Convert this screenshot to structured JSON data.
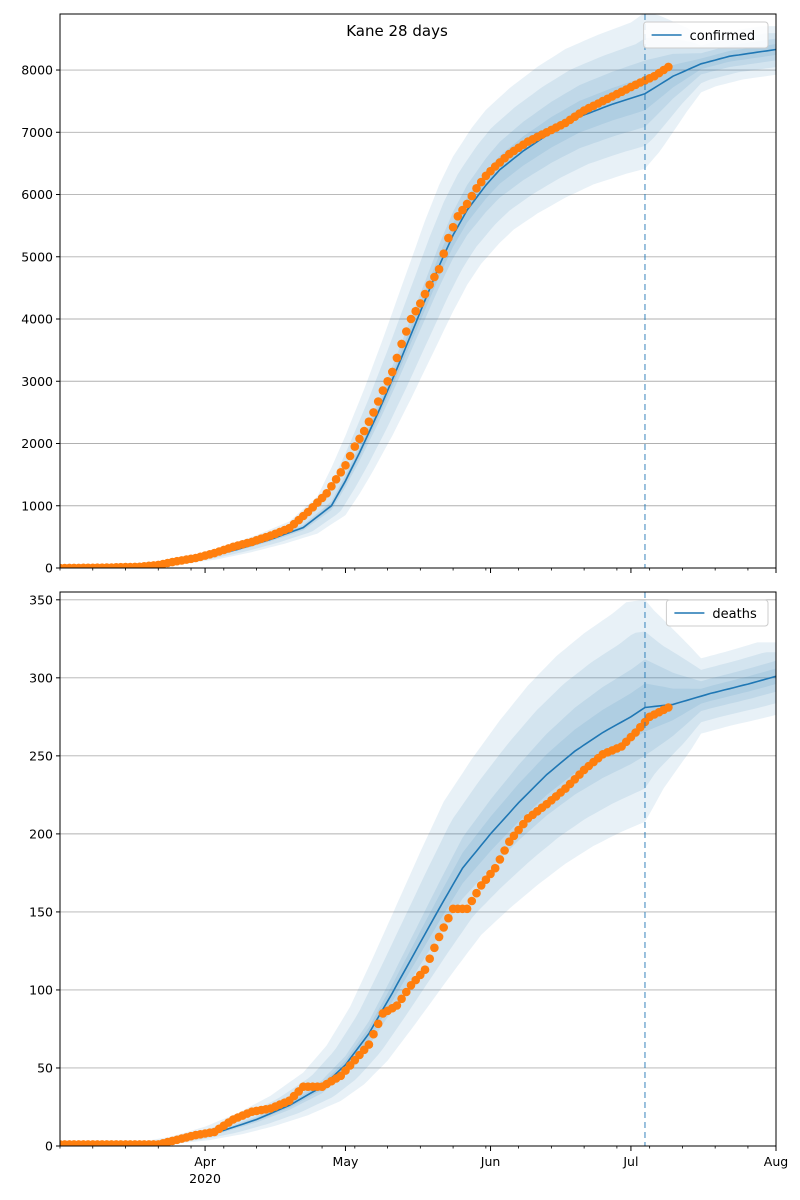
{
  "figure": {
    "title": "Kane 28 days"
  },
  "chart_data": [
    {
      "type": "line",
      "title": "Kane 28 days",
      "legend": {
        "label": "confirmed",
        "placement": "top-right"
      },
      "x_axis": {
        "start": "2020-03-01",
        "end": "2020-08-01",
        "tick_labels": [
          "Apr",
          "May",
          "Jun",
          "Jul",
          "Aug"
        ],
        "tick_dates": [
          "2020-04-01",
          "2020-05-01",
          "2020-06-01",
          "2020-07-01",
          "2020-08-01"
        ],
        "year_label": "2020"
      },
      "ylim": [
        0,
        8900
      ],
      "y_ticks": [
        0,
        1000,
        2000,
        3000,
        4000,
        5000,
        6000,
        7000,
        8000
      ],
      "grid": "horizontal",
      "forecast_start": "2020-07-04",
      "colors": {
        "model": "#1f77b4",
        "observed": "#ff7f0e"
      },
      "model_curve": {
        "dates": [
          "2020-03-01",
          "2020-03-15",
          "2020-03-25",
          "2020-04-01",
          "2020-04-08",
          "2020-04-15",
          "2020-04-22",
          "2020-04-28",
          "2020-05-01",
          "2020-05-04",
          "2020-05-08",
          "2020-05-12",
          "2020-05-15",
          "2020-05-18",
          "2020-05-21",
          "2020-05-24",
          "2020-05-27",
          "2020-05-31",
          "2020-06-03",
          "2020-06-08",
          "2020-06-14",
          "2020-06-20",
          "2020-06-27",
          "2020-07-04",
          "2020-07-10",
          "2020-07-16",
          "2020-07-22",
          "2020-08-01"
        ],
        "values": [
          0,
          15,
          80,
          170,
          300,
          460,
          650,
          1000,
          1400,
          1850,
          2500,
          3200,
          3750,
          4300,
          4850,
          5350,
          5750,
          6150,
          6400,
          6700,
          7000,
          7250,
          7450,
          7620,
          7900,
          8100,
          8220,
          8330
        ]
      },
      "observed_points": {
        "dates": [
          "2020-03-01",
          "2020-03-10",
          "2020-03-18",
          "2020-03-22",
          "2020-03-26",
          "2020-03-30",
          "2020-04-03",
          "2020-04-07",
          "2020-04-11",
          "2020-04-15",
          "2020-04-19",
          "2020-04-23",
          "2020-04-27",
          "2020-05-01",
          "2020-05-03",
          "2020-05-05",
          "2020-05-07",
          "2020-05-09",
          "2020-05-11",
          "2020-05-13",
          "2020-05-15",
          "2020-05-17",
          "2020-05-19",
          "2020-05-21",
          "2020-05-23",
          "2020-05-25",
          "2020-05-27",
          "2020-05-29",
          "2020-05-31",
          "2020-06-02",
          "2020-06-05",
          "2020-06-09",
          "2020-06-13",
          "2020-06-17",
          "2020-06-21",
          "2020-06-25",
          "2020-06-29",
          "2020-07-03",
          "2020-07-06",
          "2020-07-09"
        ],
        "values": [
          0,
          5,
          20,
          50,
          110,
          160,
          240,
          340,
          420,
          520,
          640,
          900,
          1200,
          1650,
          1950,
          2200,
          2500,
          2850,
          3150,
          3600,
          4000,
          4250,
          4550,
          4800,
          5300,
          5650,
          5850,
          6100,
          6300,
          6450,
          6650,
          6850,
          7000,
          7150,
          7350,
          7500,
          7650,
          7800,
          7900,
          8050
        ]
      }
    },
    {
      "type": "line",
      "legend": {
        "label": "deaths",
        "placement": "top-right"
      },
      "x_axis": {
        "start": "2020-03-01",
        "end": "2020-08-01",
        "tick_labels": [
          "Apr",
          "May",
          "Jun",
          "Jul",
          "Aug"
        ],
        "tick_dates": [
          "2020-04-01",
          "2020-05-01",
          "2020-06-01",
          "2020-07-01",
          "2020-08-01"
        ],
        "year_label": "2020"
      },
      "ylim": [
        0,
        355
      ],
      "y_ticks": [
        0,
        50,
        100,
        150,
        200,
        250,
        300,
        350
      ],
      "grid": "horizontal",
      "forecast_start": "2020-07-04",
      "colors": {
        "model": "#1f77b4",
        "observed": "#ff7f0e"
      },
      "model_curve": {
        "dates": [
          "2020-03-01",
          "2020-03-15",
          "2020-03-22",
          "2020-03-29",
          "2020-04-05",
          "2020-04-12",
          "2020-04-19",
          "2020-04-26",
          "2020-05-01",
          "2020-05-06",
          "2020-05-11",
          "2020-05-16",
          "2020-05-21",
          "2020-05-26",
          "2020-06-01",
          "2020-06-07",
          "2020-06-13",
          "2020-06-19",
          "2020-06-25",
          "2020-07-01",
          "2020-07-04",
          "2020-07-10",
          "2020-07-18",
          "2020-07-26",
          "2020-08-01"
        ],
        "values": [
          0,
          0.5,
          2,
          5,
          10,
          17,
          26,
          38,
          52,
          72,
          98,
          125,
          152,
          178,
          200,
          220,
          238,
          253,
          265,
          275,
          281,
          283,
          290,
          296,
          301
        ]
      },
      "observed_points": {
        "dates": [
          "2020-03-01",
          "2020-03-15",
          "2020-03-22",
          "2020-03-26",
          "2020-03-30",
          "2020-04-03",
          "2020-04-07",
          "2020-04-11",
          "2020-04-15",
          "2020-04-19",
          "2020-04-22",
          "2020-04-26",
          "2020-04-30",
          "2020-05-03",
          "2020-05-06",
          "2020-05-09",
          "2020-05-12",
          "2020-05-15",
          "2020-05-18",
          "2020-05-21",
          "2020-05-24",
          "2020-05-27",
          "2020-05-30",
          "2020-06-02",
          "2020-06-05",
          "2020-06-09",
          "2020-06-13",
          "2020-06-17",
          "2020-06-21",
          "2020-06-25",
          "2020-06-29",
          "2020-07-02",
          "2020-07-05",
          "2020-07-09"
        ],
        "values": [
          1,
          1,
          1,
          4,
          7,
          9,
          17,
          22,
          24,
          29,
          38,
          38,
          45,
          55,
          65,
          85,
          90,
          103,
          113,
          134,
          152,
          152,
          167,
          178,
          195,
          210,
          219,
          229,
          241,
          251,
          256,
          265,
          275,
          281
        ]
      }
    }
  ]
}
